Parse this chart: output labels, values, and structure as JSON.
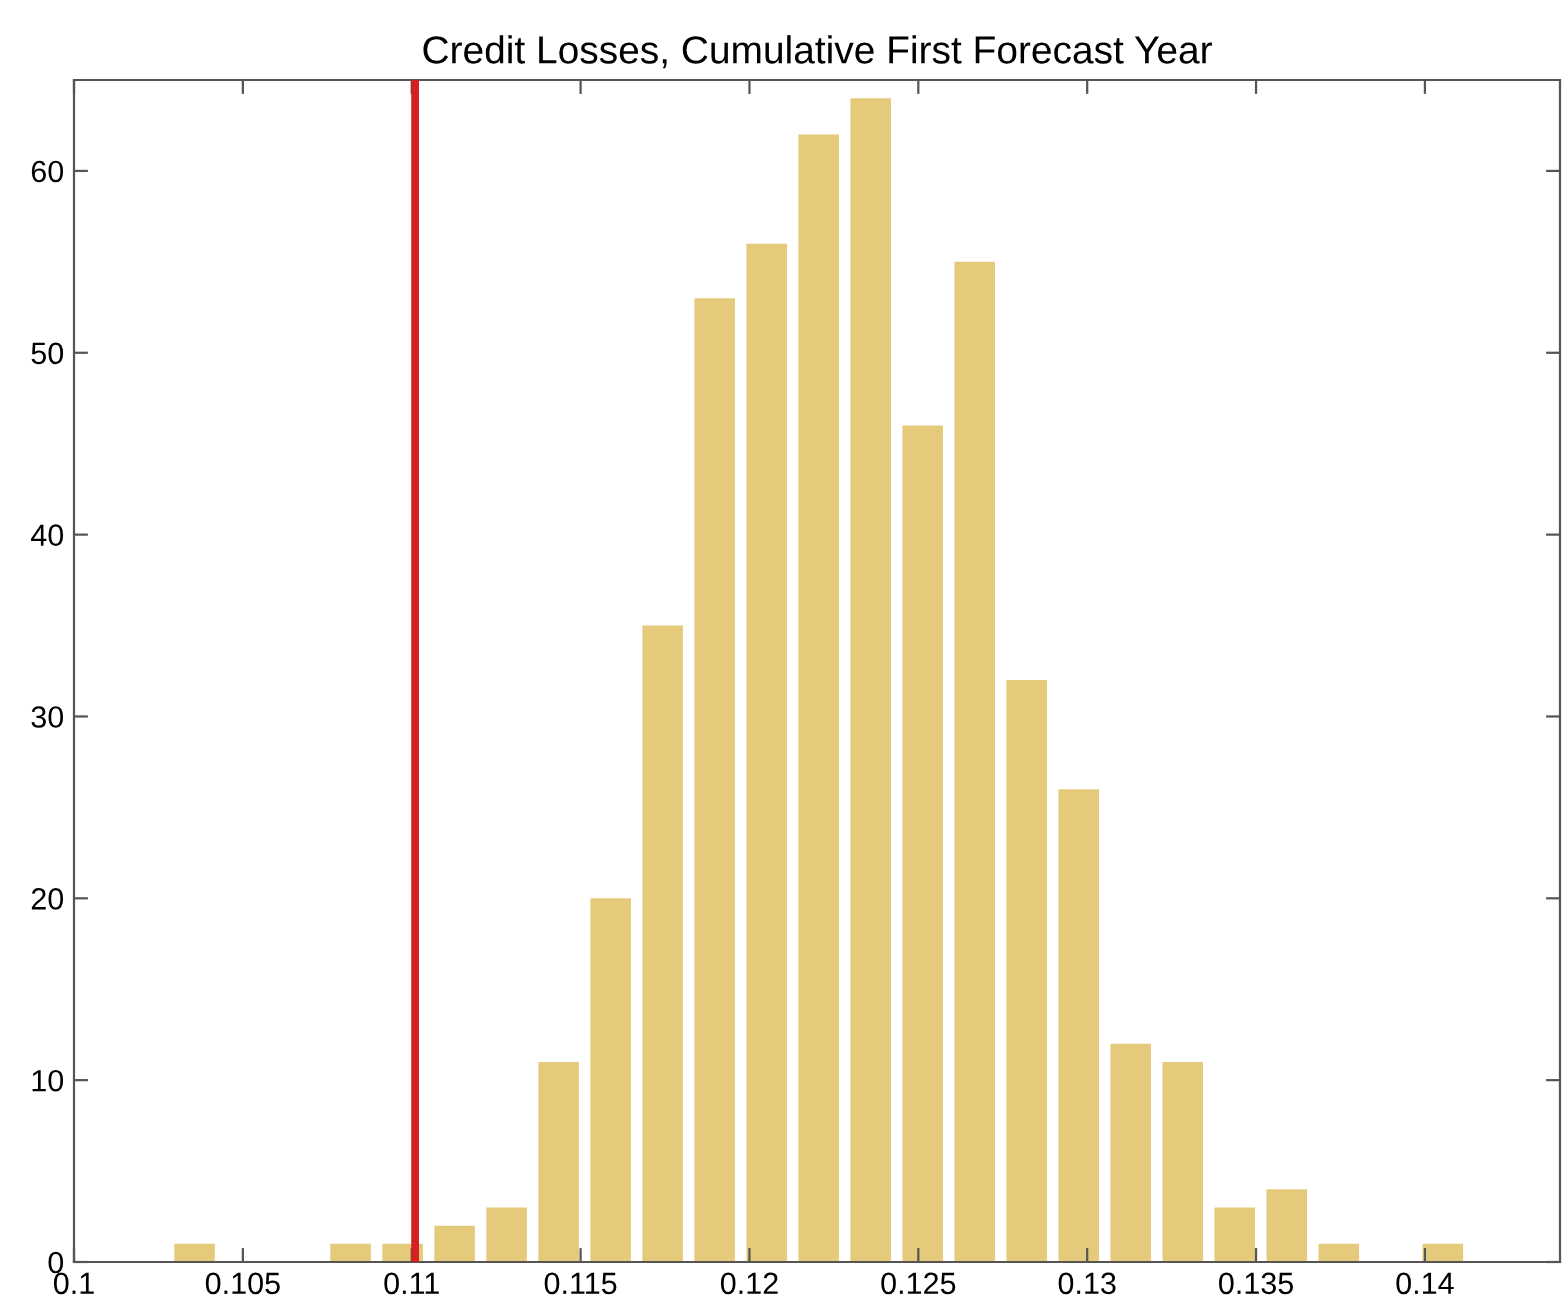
{
  "chart_data": {
    "type": "histogram",
    "title": "Credit Losses, Cumulative First Forecast Year",
    "bins": [
      0.1028,
      0.10434,
      0.10588,
      0.10742,
      0.10896,
      0.1105,
      0.11204,
      0.11358,
      0.11512,
      0.11666,
      0.1182,
      0.11974,
      0.12128,
      0.12282,
      0.12436,
      0.1259,
      0.12744,
      0.12898,
      0.13052,
      0.13206,
      0.1336,
      0.13514,
      0.13668,
      0.13822,
      0.13976,
      0.1413
    ],
    "values": [
      1,
      0,
      0,
      1,
      1,
      2,
      3,
      11,
      20,
      35,
      53,
      56,
      62,
      64,
      46,
      55,
      32,
      26,
      12,
      11,
      3,
      4,
      1,
      0,
      1
    ],
    "color": "#e6ca7b",
    "xlim": [
      0.1,
      0.144
    ],
    "xticks": [
      0.1,
      0.105,
      0.11,
      0.115,
      0.12,
      0.125,
      0.13,
      0.135,
      0.14
    ],
    "ylim": [
      0,
      65
    ],
    "yticks": [
      0,
      10,
      20,
      30,
      40,
      50,
      60
    ],
    "ref_lines": [
      {
        "axis": "x",
        "value": 0.1101,
        "color": "#d42020",
        "line_style": "solid"
      }
    ],
    "grid": false
  }
}
